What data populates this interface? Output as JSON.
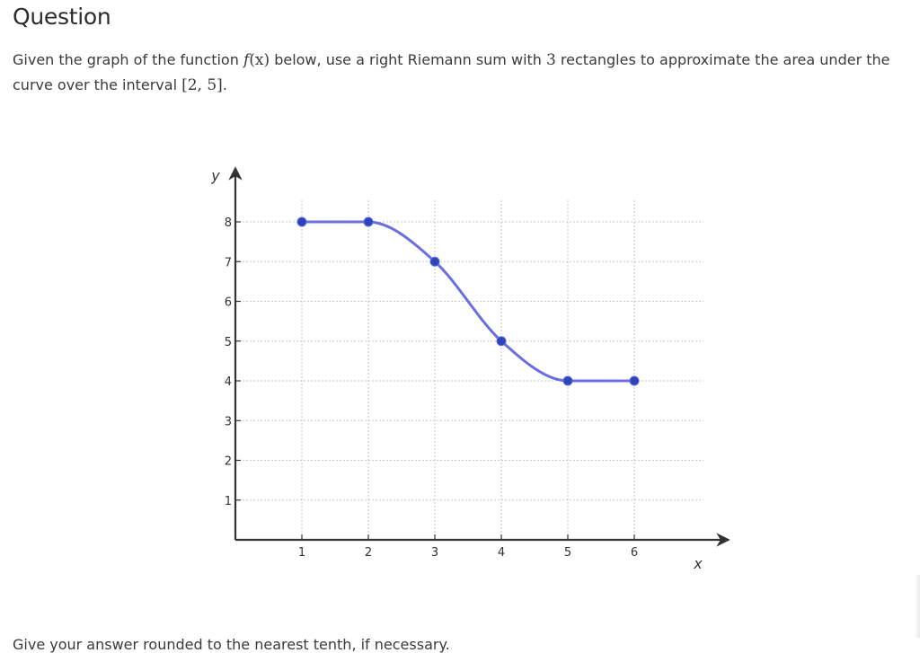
{
  "question": {
    "title": "Question",
    "text_1": "Given the graph of the function ",
    "func_name": "f",
    "func_arg": "(x)",
    "text_2": " below, use a right Riemann sum with ",
    "num_rects": "3",
    "text_3": " rectangles to approximate the area under the curve over the interval ",
    "interval": "[2, 5]",
    "text_4": "."
  },
  "footer": {
    "instruction": "Give your answer rounded to the nearest tenth, if necessary."
  },
  "chart_data": {
    "type": "line",
    "title": "",
    "xlabel": "x",
    "ylabel": "y",
    "xlim": [
      0,
      6.5
    ],
    "ylim": [
      0,
      8.5
    ],
    "x_ticks": [
      1,
      2,
      3,
      4,
      5,
      6
    ],
    "y_ticks": [
      1,
      2,
      3,
      4,
      5,
      6,
      7,
      8
    ],
    "grid": true,
    "points": [
      {
        "x": 1,
        "y": 8
      },
      {
        "x": 2,
        "y": 8
      },
      {
        "x": 3,
        "y": 7
      },
      {
        "x": 4,
        "y": 5
      },
      {
        "x": 5,
        "y": 4
      },
      {
        "x": 6,
        "y": 4
      }
    ],
    "curve_color": "#6b6ee0",
    "point_color": "#2f44b8"
  }
}
